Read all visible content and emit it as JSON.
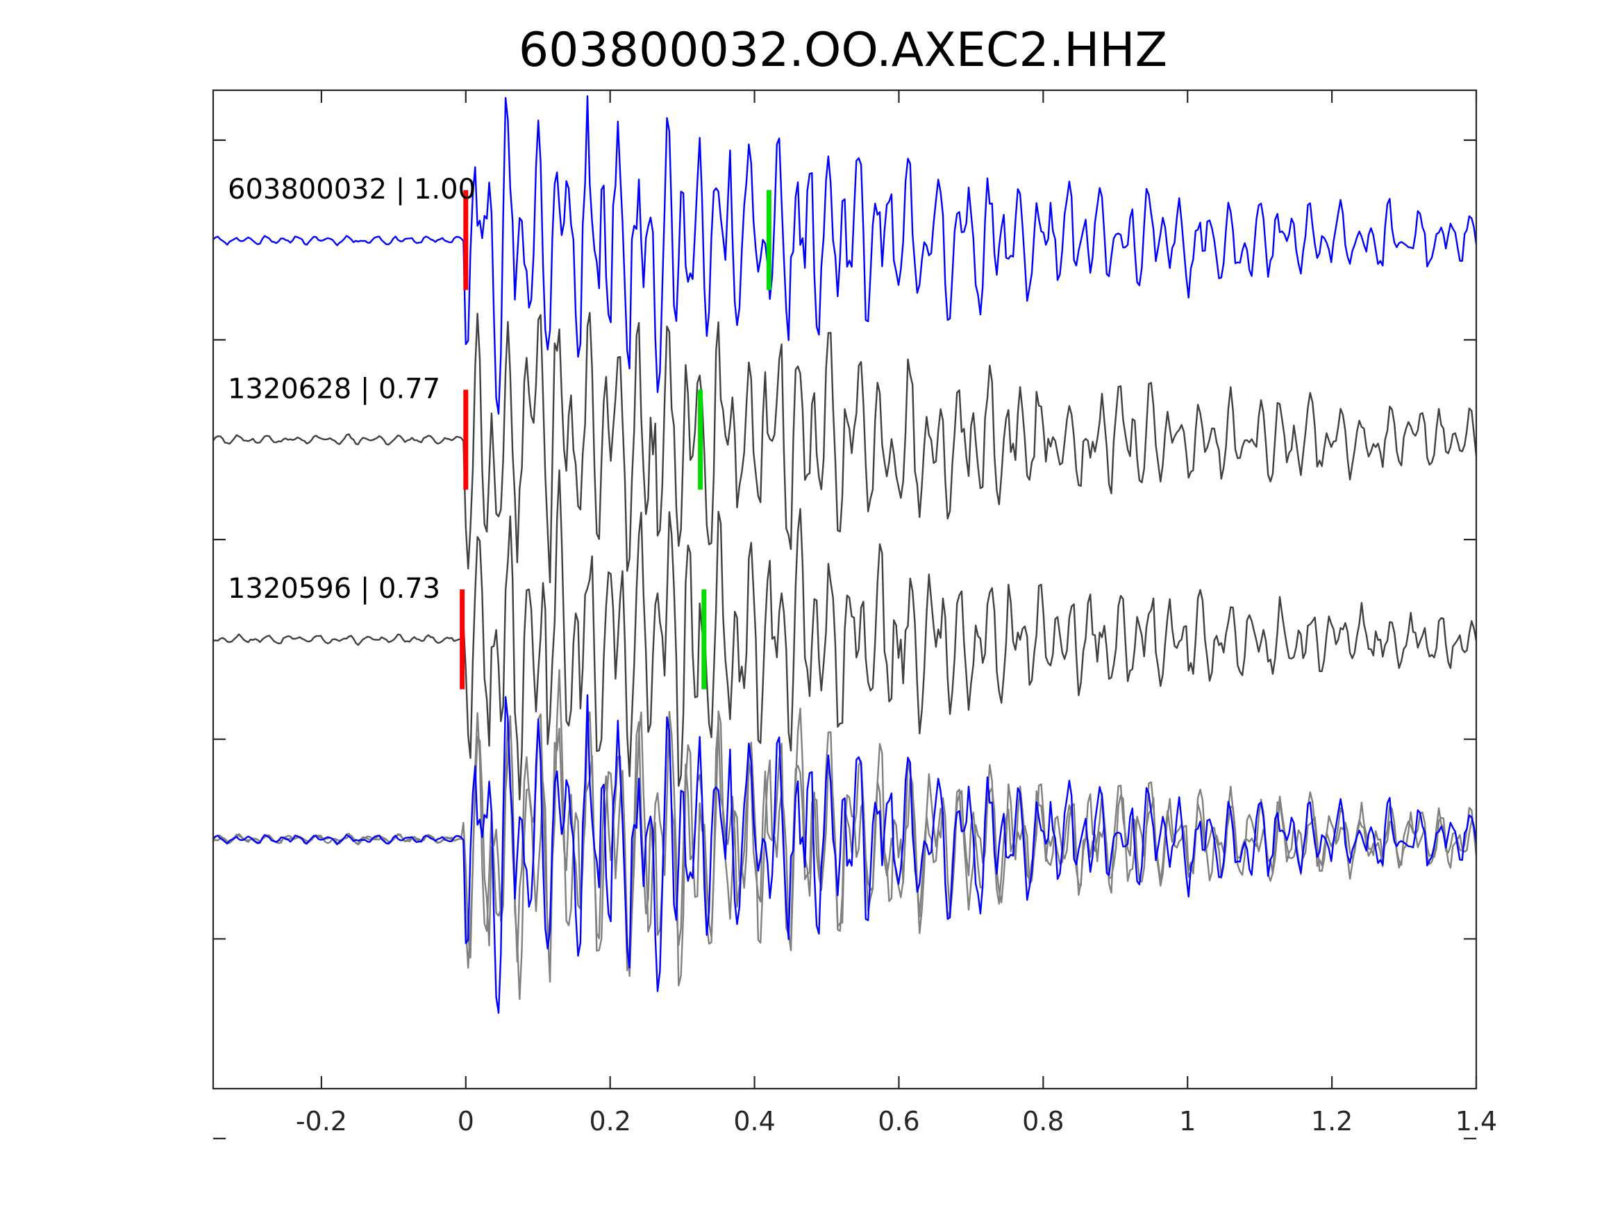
{
  "chart_data": {
    "type": "line",
    "title": "603800032.OO.AXEC2.HHZ",
    "xlabel": "",
    "ylabel": "",
    "xlim": [
      -0.35,
      1.4
    ],
    "x_ticks": [
      "-0.2",
      "0",
      "0.2",
      "0.4",
      "0.6",
      "0.8",
      "1",
      "1.2",
      "1.4"
    ],
    "x_tick_values": [
      -0.2,
      0,
      0.2,
      0.4,
      0.6,
      0.8,
      1,
      1.2,
      1.4
    ],
    "ylim": [
      -4.25,
      0.75
    ],
    "y_tick_values": [
      -4.5,
      -3.5,
      -2.5,
      -1.5,
      -0.5,
      0.5
    ],
    "y_tick_labels": false,
    "grid": false,
    "traces": [
      {
        "label": "603800032 | 1.00",
        "offset": 0,
        "color": "#0000ff",
        "amplitude": 0.92,
        "p_pick": 0.0,
        "s_pick": 0.42,
        "seed": 11
      },
      {
        "label": "1320628 | 0.77",
        "offset": -1,
        "color": "#404040",
        "amplitude": 0.92,
        "p_pick": 0.0,
        "s_pick": 0.325,
        "seed": 29
      },
      {
        "label": "1320596 | 0.73",
        "offset": -2,
        "color": "#404040",
        "amplitude": 0.92,
        "p_pick": -0.005,
        "s_pick": 0.33,
        "seed": 47
      }
    ],
    "overlay": {
      "offset": -3,
      "colors": [
        "#808080",
        "#808080",
        "#0000ff"
      ]
    },
    "pick_colors": {
      "p": "#ff0000",
      "s": "#00dd00"
    }
  }
}
